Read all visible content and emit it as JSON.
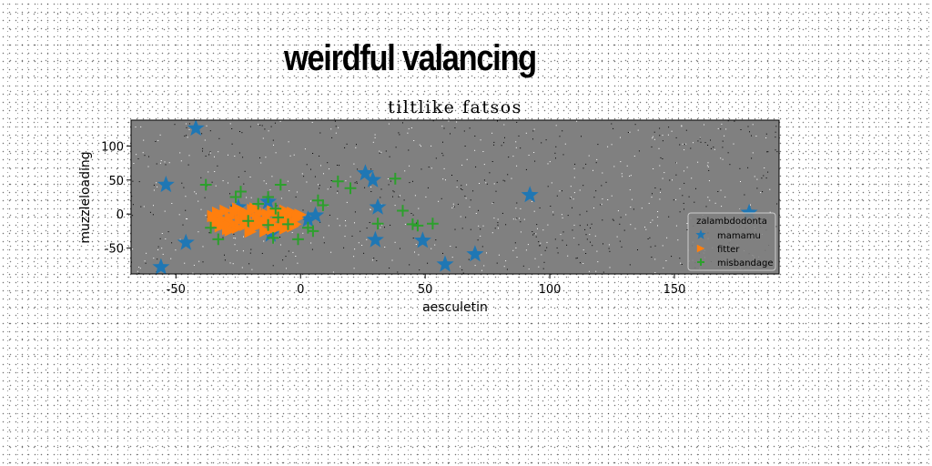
{
  "figure": {
    "suptitle": "weirdful valancing"
  },
  "chart_data": {
    "type": "scatter",
    "title": "tiltlike fatsos",
    "xlabel": "aesculetin",
    "ylabel": "muzzleloading",
    "xlim": [
      -68,
      192
    ],
    "ylim": [
      -88,
      138
    ],
    "xticks": [
      -50,
      0,
      50,
      100,
      150
    ],
    "yticks": [
      -50,
      0,
      50,
      100
    ],
    "grid": false,
    "plot_background": "#808080",
    "legend": {
      "title": "zalambdodonta",
      "placement": "lower-right"
    },
    "series": [
      {
        "name": "mamamu",
        "marker": "star",
        "color": "#1f77b4",
        "points": [
          [
            -42,
            126
          ],
          [
            -54,
            43
          ],
          [
            -56,
            -78
          ],
          [
            -46,
            -42
          ],
          [
            -25,
            10
          ],
          [
            -13,
            18
          ],
          [
            -12,
            -30
          ],
          [
            3,
            -8
          ],
          [
            6,
            -2
          ],
          [
            26,
            60
          ],
          [
            29,
            50
          ],
          [
            30,
            -38
          ],
          [
            31,
            10
          ],
          [
            49,
            -39
          ],
          [
            58,
            -74
          ],
          [
            70,
            -59
          ],
          [
            92,
            28
          ],
          [
            180,
            2
          ]
        ]
      },
      {
        "name": "fitter",
        "marker": "triangle-right",
        "color": "#ff7f0e",
        "points": [
          [
            -35,
            -3
          ],
          [
            -34,
            -12
          ],
          [
            -33,
            2
          ],
          [
            -32,
            -18
          ],
          [
            -31,
            -8
          ],
          [
            -30,
            5
          ],
          [
            -29,
            -22
          ],
          [
            -28,
            -5
          ],
          [
            -27,
            -14
          ],
          [
            -26,
            3
          ],
          [
            -25,
            -20
          ],
          [
            -24,
            -9
          ],
          [
            -23,
            4
          ],
          [
            -22,
            -16
          ],
          [
            -21,
            -2
          ],
          [
            -20,
            -11
          ],
          [
            -19,
            6
          ],
          [
            -18,
            -19
          ],
          [
            -17,
            -6
          ],
          [
            -16,
            2
          ],
          [
            -15,
            -14
          ],
          [
            -14,
            -25
          ],
          [
            -13,
            -1
          ],
          [
            -12,
            -10
          ],
          [
            -11,
            4
          ],
          [
            -10,
            -17
          ],
          [
            -9,
            -5
          ],
          [
            -8,
            1
          ],
          [
            -7,
            -12
          ],
          [
            -6,
            -21
          ],
          [
            -5,
            -3
          ],
          [
            -4,
            -9
          ],
          [
            -3,
            2
          ],
          [
            -2,
            -15
          ],
          [
            -1,
            -6
          ],
          [
            0,
            -1
          ],
          [
            -28,
            -24
          ],
          [
            -20,
            -26
          ],
          [
            -16,
            -9
          ],
          [
            -9,
            -20
          ],
          [
            -25,
            8
          ],
          [
            -30,
            -15
          ],
          [
            -18,
            8
          ],
          [
            -11,
            -22
          ],
          [
            -6,
            5
          ],
          [
            -3,
            -18
          ],
          [
            -33,
            -10
          ],
          [
            -22,
            -4
          ]
        ]
      },
      {
        "name": "misbandage",
        "marker": "plus",
        "color": "#2ca02c",
        "points": [
          [
            -38,
            43
          ],
          [
            -36,
            -20
          ],
          [
            -33,
            -37
          ],
          [
            -26,
            25
          ],
          [
            -24,
            33
          ],
          [
            -21,
            -10
          ],
          [
            -17,
            15
          ],
          [
            -13,
            -16
          ],
          [
            -13,
            25
          ],
          [
            -11,
            -35
          ],
          [
            -10,
            8
          ],
          [
            -9,
            -5
          ],
          [
            -8,
            43
          ],
          [
            -5,
            -15
          ],
          [
            -1,
            -37
          ],
          [
            3,
            -20
          ],
          [
            5,
            -25
          ],
          [
            7,
            20
          ],
          [
            9,
            13
          ],
          [
            15,
            48
          ],
          [
            20,
            38
          ],
          [
            31,
            -14
          ],
          [
            38,
            52
          ],
          [
            41,
            5
          ],
          [
            45,
            -15
          ],
          [
            47,
            -17
          ],
          [
            53,
            -14
          ]
        ]
      }
    ]
  }
}
